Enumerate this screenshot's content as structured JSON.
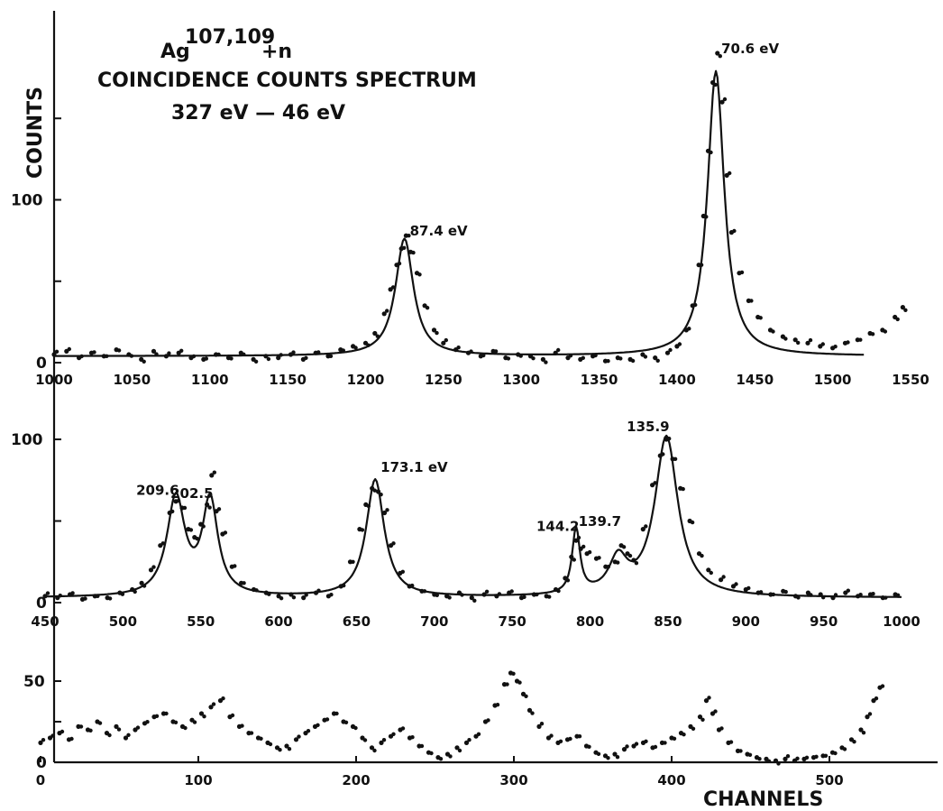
{
  "chart_data": {
    "type": "scatter",
    "title_isotope": "Ag",
    "title_mass": "107,109",
    "title_reaction": "+n",
    "title": "COINCIDENCE COUNTS SPECTRUM",
    "subtitle": "327 eV — 46 eV",
    "ylabel": "COUNTS",
    "xlabel": "CHANNELS",
    "panels": [
      {
        "name": "top",
        "xlim": [
          1000,
          1550
        ],
        "ylim": [
          0,
          195
        ],
        "x_ticks": [
          "1000",
          "1050",
          "1100",
          "1150",
          "1200",
          "1250",
          "1300",
          "1350",
          "1400",
          "1450",
          "1500",
          "1550"
        ],
        "y_ticks": [
          "0",
          "100"
        ],
        "y_minor_ticks": [
          0,
          50,
          100,
          150
        ],
        "baseline": 4,
        "fit_x_end": 1520,
        "peaks": [
          {
            "channel": 1225,
            "height": 72,
            "width": 7,
            "label": "87.4 eV",
            "label_value": 78
          },
          {
            "channel": 1425,
            "height": 175,
            "width": 6.5,
            "label": "70.6 eV",
            "label_value": 190
          }
        ],
        "points": [
          [
            1000,
            5
          ],
          [
            1008,
            7
          ],
          [
            1016,
            3
          ],
          [
            1024,
            6
          ],
          [
            1032,
            4
          ],
          [
            1040,
            8
          ],
          [
            1048,
            5
          ],
          [
            1056,
            2
          ],
          [
            1064,
            7
          ],
          [
            1072,
            4
          ],
          [
            1080,
            6
          ],
          [
            1088,
            3
          ],
          [
            1096,
            2
          ],
          [
            1104,
            5
          ],
          [
            1112,
            3
          ],
          [
            1120,
            6
          ],
          [
            1128,
            2
          ],
          [
            1136,
            4
          ],
          [
            1144,
            3
          ],
          [
            1152,
            5
          ],
          [
            1160,
            2
          ],
          [
            1168,
            6
          ],
          [
            1176,
            4
          ],
          [
            1184,
            8
          ],
          [
            1192,
            10
          ],
          [
            1200,
            12
          ],
          [
            1206,
            18
          ],
          [
            1212,
            30
          ],
          [
            1216,
            45
          ],
          [
            1220,
            60
          ],
          [
            1223,
            70
          ],
          [
            1226,
            78
          ],
          [
            1229,
            68
          ],
          [
            1233,
            55
          ],
          [
            1238,
            35
          ],
          [
            1244,
            20
          ],
          [
            1250,
            12
          ],
          [
            1258,
            8
          ],
          [
            1266,
            6
          ],
          [
            1274,
            4
          ],
          [
            1282,
            7
          ],
          [
            1290,
            3
          ],
          [
            1298,
            5
          ],
          [
            1306,
            4
          ],
          [
            1314,
            2
          ],
          [
            1322,
            6
          ],
          [
            1330,
            3
          ],
          [
            1338,
            2
          ],
          [
            1346,
            4
          ],
          [
            1354,
            1
          ],
          [
            1362,
            3
          ],
          [
            1370,
            2
          ],
          [
            1378,
            5
          ],
          [
            1386,
            3
          ],
          [
            1394,
            6
          ],
          [
            1400,
            10
          ],
          [
            1406,
            20
          ],
          [
            1410,
            35
          ],
          [
            1414,
            60
          ],
          [
            1417,
            90
          ],
          [
            1420,
            130
          ],
          [
            1423,
            172
          ],
          [
            1426,
            190
          ],
          [
            1429,
            160
          ],
          [
            1432,
            115
          ],
          [
            1435,
            80
          ],
          [
            1440,
            55
          ],
          [
            1446,
            38
          ],
          [
            1452,
            28
          ],
          [
            1460,
            20
          ],
          [
            1468,
            16
          ],
          [
            1476,
            14
          ],
          [
            1484,
            12
          ],
          [
            1492,
            10
          ],
          [
            1500,
            9
          ],
          [
            1508,
            12
          ],
          [
            1516,
            14
          ],
          [
            1524,
            18
          ],
          [
            1532,
            20
          ],
          [
            1540,
            28
          ],
          [
            1545,
            34
          ]
        ]
      },
      {
        "name": "middle",
        "xlim": [
          450,
          1000
        ],
        "ylim": [
          0,
          105
        ],
        "x_ticks": [
          "450",
          "500",
          "550",
          "600",
          "650",
          "700",
          "750",
          "800",
          "850",
          "900",
          "950",
          "1000"
        ],
        "y_ticks": [
          "0",
          "100"
        ],
        "y_minor_ticks": [
          0,
          50,
          100
        ],
        "baseline": 3,
        "fit_x_end": 1000,
        "peaks": [
          {
            "channel": 534,
            "height": 60,
            "width": 7,
            "label": "209.6",
            "label_value": 66
          },
          {
            "channel": 556,
            "height": 58,
            "width": 6,
            "label": "202.5",
            "label_value": 64
          },
          {
            "channel": 662,
            "height": 72,
            "width": 7,
            "label": "173.1 eV",
            "label_value": 80
          },
          {
            "channel": 791,
            "height": 40,
            "width": 3,
            "label": "144.2",
            "label_value": 44
          },
          {
            "channel": 818,
            "height": 21,
            "width": 7,
            "label": "139.7",
            "label_value": 47
          },
          {
            "channel": 849,
            "height": 98,
            "width": 9,
            "label": "135.9",
            "label_value": 105
          }
        ],
        "points": [
          [
            450,
            4
          ],
          [
            458,
            3
          ],
          [
            466,
            5
          ],
          [
            474,
            2
          ],
          [
            482,
            4
          ],
          [
            490,
            3
          ],
          [
            498,
            6
          ],
          [
            506,
            8
          ],
          [
            512,
            12
          ],
          [
            518,
            20
          ],
          [
            524,
            35
          ],
          [
            530,
            55
          ],
          [
            534,
            62
          ],
          [
            538,
            58
          ],
          [
            542,
            45
          ],
          [
            546,
            40
          ],
          [
            550,
            48
          ],
          [
            554,
            60
          ],
          [
            557,
            78
          ],
          [
            560,
            56
          ],
          [
            564,
            42
          ],
          [
            570,
            22
          ],
          [
            576,
            12
          ],
          [
            584,
            8
          ],
          [
            592,
            6
          ],
          [
            600,
            4
          ],
          [
            608,
            5
          ],
          [
            616,
            3
          ],
          [
            624,
            6
          ],
          [
            632,
            4
          ],
          [
            640,
            10
          ],
          [
            646,
            25
          ],
          [
            652,
            45
          ],
          [
            656,
            60
          ],
          [
            660,
            70
          ],
          [
            664,
            68
          ],
          [
            668,
            55
          ],
          [
            672,
            35
          ],
          [
            678,
            18
          ],
          [
            684,
            10
          ],
          [
            692,
            7
          ],
          [
            700,
            5
          ],
          [
            708,
            4
          ],
          [
            716,
            6
          ],
          [
            724,
            3
          ],
          [
            732,
            5
          ],
          [
            740,
            4
          ],
          [
            748,
            6
          ],
          [
            756,
            3
          ],
          [
            764,
            5
          ],
          [
            772,
            4
          ],
          [
            778,
            8
          ],
          [
            784,
            15
          ],
          [
            788,
            28
          ],
          [
            791,
            38
          ],
          [
            794,
            33
          ],
          [
            798,
            30
          ],
          [
            804,
            27
          ],
          [
            810,
            22
          ],
          [
            816,
            25
          ],
          [
            820,
            35
          ],
          [
            824,
            30
          ],
          [
            828,
            26
          ],
          [
            834,
            45
          ],
          [
            840,
            72
          ],
          [
            845,
            90
          ],
          [
            849,
            100
          ],
          [
            853,
            88
          ],
          [
            858,
            70
          ],
          [
            864,
            50
          ],
          [
            870,
            30
          ],
          [
            876,
            20
          ],
          [
            884,
            14
          ],
          [
            892,
            10
          ],
          [
            900,
            8
          ],
          [
            908,
            6
          ],
          [
            916,
            5
          ],
          [
            924,
            7
          ],
          [
            932,
            4
          ],
          [
            940,
            6
          ],
          [
            948,
            5
          ],
          [
            956,
            3
          ],
          [
            964,
            6
          ],
          [
            972,
            4
          ],
          [
            980,
            5
          ],
          [
            988,
            3
          ],
          [
            996,
            5
          ]
        ]
      },
      {
        "name": "bottom",
        "xlim": [
          0,
          560
        ],
        "ylim": [
          0,
          65
        ],
        "x_ticks": [
          "0",
          "100",
          "200",
          "300",
          "400",
          "500"
        ],
        "y_ticks": [
          "0",
          "50"
        ],
        "y_minor_ticks": [
          0,
          25,
          50
        ],
        "baseline": 0,
        "fit_x_end": 0,
        "peaks": [],
        "points": [
          [
            0,
            12
          ],
          [
            6,
            15
          ],
          [
            12,
            18
          ],
          [
            18,
            14
          ],
          [
            24,
            22
          ],
          [
            30,
            20
          ],
          [
            36,
            25
          ],
          [
            42,
            18
          ],
          [
            48,
            22
          ],
          [
            54,
            15
          ],
          [
            60,
            20
          ],
          [
            66,
            24
          ],
          [
            72,
            28
          ],
          [
            78,
            30
          ],
          [
            84,
            25
          ],
          [
            90,
            22
          ],
          [
            96,
            26
          ],
          [
            102,
            30
          ],
          [
            108,
            34
          ],
          [
            114,
            38
          ],
          [
            120,
            28
          ],
          [
            126,
            22
          ],
          [
            132,
            18
          ],
          [
            138,
            15
          ],
          [
            144,
            12
          ],
          [
            150,
            9
          ],
          [
            156,
            10
          ],
          [
            162,
            14
          ],
          [
            168,
            18
          ],
          [
            174,
            22
          ],
          [
            180,
            26
          ],
          [
            186,
            30
          ],
          [
            192,
            25
          ],
          [
            198,
            22
          ],
          [
            204,
            15
          ],
          [
            210,
            9
          ],
          [
            216,
            12
          ],
          [
            222,
            16
          ],
          [
            228,
            20
          ],
          [
            234,
            15
          ],
          [
            240,
            10
          ],
          [
            246,
            6
          ],
          [
            252,
            3
          ],
          [
            258,
            5
          ],
          [
            264,
            9
          ],
          [
            270,
            12
          ],
          [
            276,
            16
          ],
          [
            282,
            25
          ],
          [
            288,
            35
          ],
          [
            294,
            48
          ],
          [
            298,
            55
          ],
          [
            302,
            50
          ],
          [
            306,
            42
          ],
          [
            310,
            32
          ],
          [
            316,
            22
          ],
          [
            322,
            15
          ],
          [
            328,
            12
          ],
          [
            334,
            14
          ],
          [
            340,
            16
          ],
          [
            346,
            10
          ],
          [
            352,
            6
          ],
          [
            358,
            4
          ],
          [
            364,
            5
          ],
          [
            370,
            8
          ],
          [
            376,
            10
          ],
          [
            382,
            12
          ],
          [
            388,
            9
          ],
          [
            394,
            12
          ],
          [
            400,
            15
          ],
          [
            406,
            18
          ],
          [
            412,
            22
          ],
          [
            418,
            28
          ],
          [
            422,
            38
          ],
          [
            426,
            30
          ],
          [
            430,
            20
          ],
          [
            436,
            12
          ],
          [
            442,
            7
          ],
          [
            448,
            5
          ],
          [
            454,
            3
          ],
          [
            460,
            2
          ],
          [
            466,
            1
          ],
          [
            472,
            2
          ],
          [
            478,
            1
          ],
          [
            484,
            2
          ],
          [
            490,
            3
          ],
          [
            496,
            4
          ],
          [
            502,
            6
          ],
          [
            508,
            9
          ],
          [
            514,
            14
          ],
          [
            520,
            20
          ],
          [
            524,
            28
          ],
          [
            528,
            38
          ],
          [
            532,
            46
          ]
        ]
      }
    ]
  }
}
